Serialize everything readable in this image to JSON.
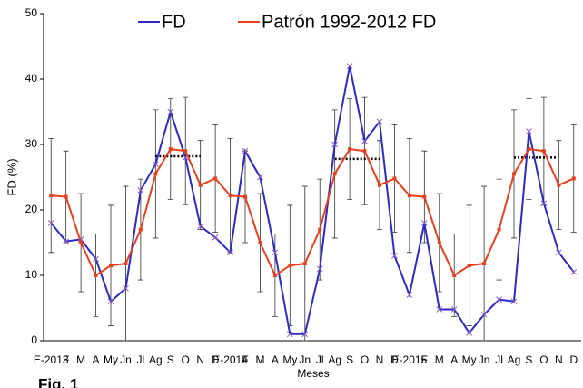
{
  "chart_data": {
    "type": "line",
    "caption": "Fig. 1",
    "x_label": "Meses",
    "y_label": "FD (%)",
    "categories": [
      "E-2013",
      "F",
      "M",
      "A",
      "My",
      "Jn",
      "Jl",
      "Ag",
      "S",
      "O",
      "N",
      "D",
      "E-2014",
      "F",
      "M",
      "A",
      "My",
      "Jn",
      "Jl",
      "Ag",
      "S",
      "O",
      "N",
      "D",
      "E-2015",
      "F",
      "M",
      "A",
      "My",
      "Jn",
      "Jl",
      "Ag",
      "S",
      "O",
      "N",
      "D"
    ],
    "ylim": [
      0,
      50
    ],
    "yticks": [
      0,
      10,
      20,
      30,
      40,
      50
    ],
    "legend": "top",
    "series": [
      {
        "name": "FD",
        "color": "#2a2ac4",
        "marker_color": "#8a5cc0",
        "values": [
          18,
          15.2,
          15.5,
          12.5,
          6,
          8,
          23,
          27,
          35,
          28,
          17.5,
          15.8,
          13.5,
          29,
          25,
          13.5,
          1,
          1,
          11,
          30,
          42,
          30.5,
          33.5,
          13,
          7,
          18,
          4.8,
          4.8,
          1.2,
          4,
          6.3,
          6,
          32,
          21,
          13.5,
          10.5
        ]
      },
      {
        "name": "Patrón 1992-2012 FD",
        "color": "#e8401c",
        "values": [
          22.2,
          22,
          15,
          10,
          11.5,
          11.8,
          17,
          25.5,
          29.3,
          29,
          23.8,
          24.8,
          22.2,
          22,
          15,
          10,
          11.5,
          11.8,
          17,
          25.5,
          29.3,
          29,
          23.8,
          24.8,
          22.2,
          22,
          15,
          10,
          11.5,
          11.8,
          17,
          25.5,
          29.3,
          29,
          23.8,
          24.8
        ],
        "errors": [
          8.7,
          7,
          7.5,
          6.3,
          9.2,
          11.8,
          7.7,
          9.8,
          7.7,
          8.2,
          6.8,
          8.2,
          8.7,
          7,
          7.5,
          6.3,
          9.2,
          11.8,
          7.7,
          9.8,
          7.7,
          8.2,
          6.8,
          8.2,
          8.7,
          7,
          7.5,
          6.3,
          9.2,
          11.8,
          7.7,
          9.8,
          7.7,
          8.2,
          6.8,
          8.2
        ]
      }
    ],
    "reference_lines": [
      {
        "from": 7,
        "to": 10,
        "value": 28.2
      },
      {
        "from": 19,
        "to": 22,
        "value": 27.8
      },
      {
        "from": 31,
        "to": 34,
        "value": 28
      }
    ]
  }
}
